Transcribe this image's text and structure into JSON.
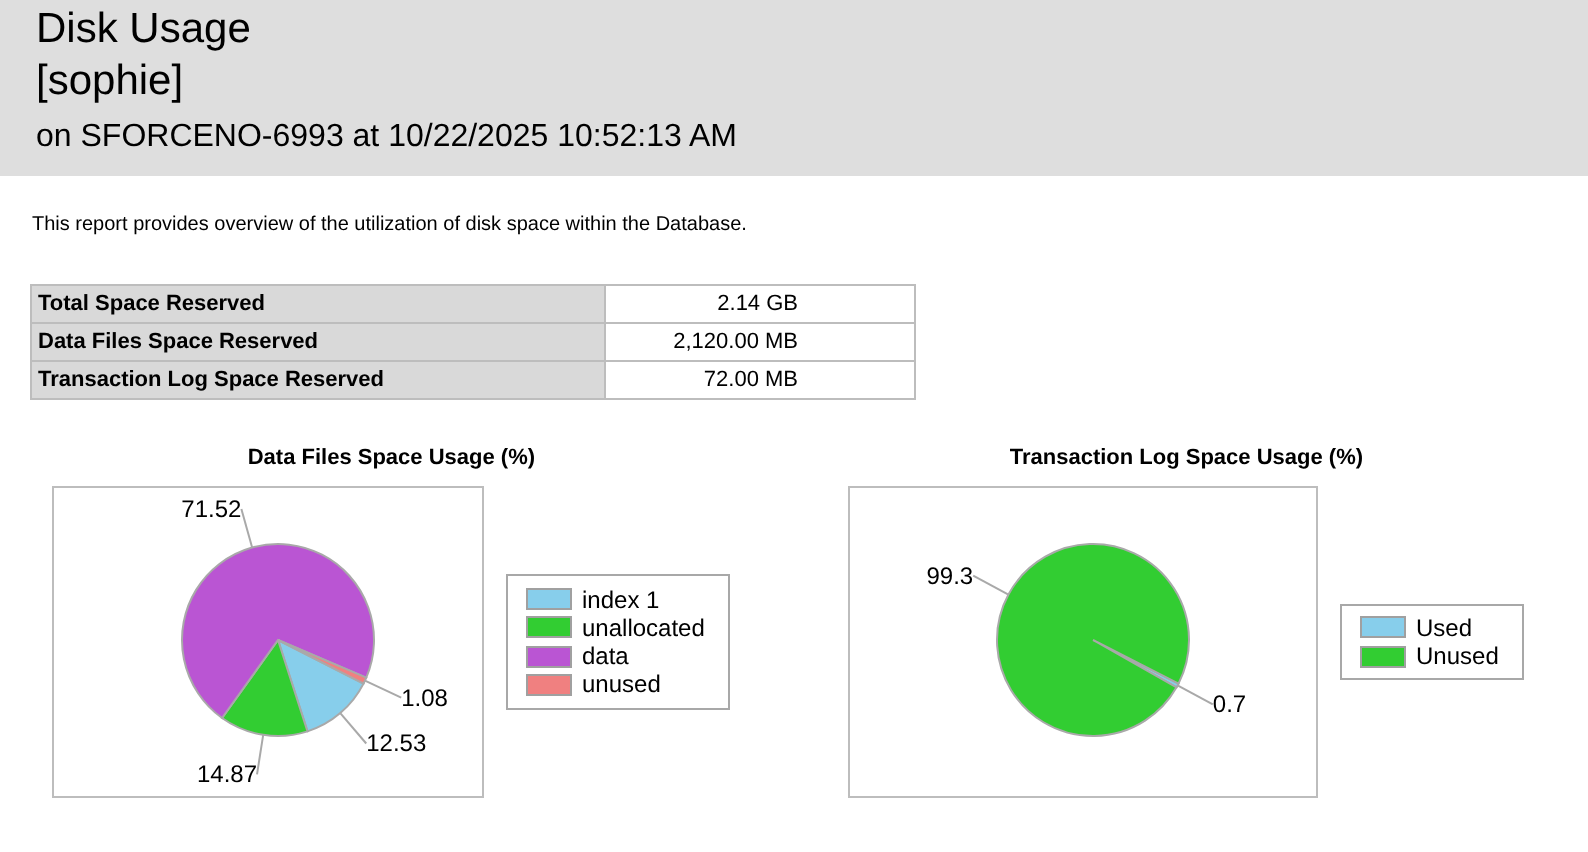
{
  "chart_data": [
    {
      "type": "other",
      "title": "Disk Usage",
      "subtitle": "[sophie]",
      "annotations": [
        "on SFORCENO-6993 at 10/22/2025 10:52:13 AM",
        "This report provides overview of the utilization of disk space within the Database."
      ],
      "categories": [
        "Total Space Reserved",
        "Data Files Space Reserved",
        "Transaction Log Space Reserved"
      ],
      "value_labels": [
        "2.14 GB",
        "2,120.00 MB",
        "72.00 MB"
      ]
    },
    {
      "type": "pie",
      "title": "Data Files Space Usage (%)",
      "categories": [
        "index 1",
        "unallocated",
        "data",
        "unused"
      ],
      "values": [
        12.53,
        14.87,
        71.52,
        1.08
      ],
      "colors": [
        "#87ceeb",
        "#32cd32",
        "#ba55d3",
        "#f08080"
      ],
      "data_labels": true,
      "legend": "right"
    },
    {
      "type": "pie",
      "title": "Transaction Log Space Usage (%)",
      "categories": [
        "Used",
        "Unused"
      ],
      "values": [
        0.7,
        99.3
      ],
      "colors": [
        "#87ceeb",
        "#32cd32"
      ],
      "data_labels": true,
      "legend": "right"
    }
  ]
}
